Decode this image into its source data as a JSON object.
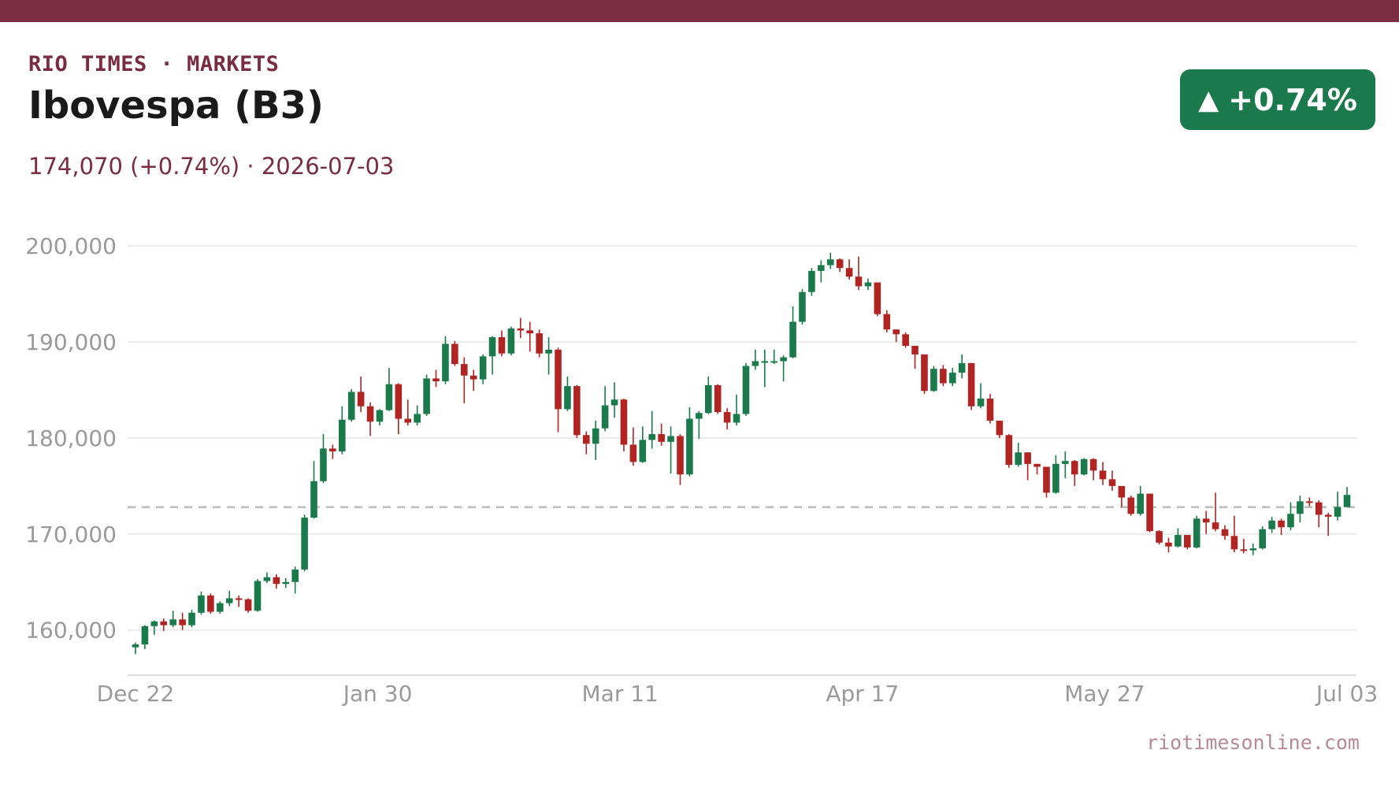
{
  "header": {
    "brand": "RIO TIMES · MARKETS",
    "title": "Ibovespa (B3)",
    "subline": "174,070 (+0.74%)  ·  2026-07-03",
    "badge_arrow": "▲",
    "badge_value": "+0.74%",
    "badge_color": "#1b7a4b",
    "accent_color": "#7a2c40"
  },
  "footer": {
    "source": "riotimesonline.com"
  },
  "chart_data": {
    "type": "candlestick",
    "up_color": "#1b7a4b",
    "down_color": "#b02422",
    "reference_line": {
      "value": 172800,
      "style": "dashed"
    },
    "ylim": [
      155300,
      201000
    ],
    "y_ticks": [
      160000,
      170000,
      180000,
      190000,
      200000
    ],
    "y_tick_labels": [
      "160,000",
      "170,000",
      "180,000",
      "190,000",
      "200,000"
    ],
    "x_tick_labels": [
      "Dec 22",
      "Jan 30",
      "Mar 11",
      "Apr 17",
      "May 27",
      "Jul 03"
    ],
    "grid": true,
    "candles": [
      [
        158200,
        158500,
        157500,
        158700
      ],
      [
        158500,
        160400,
        158000,
        160500
      ],
      [
        160400,
        160900,
        159500,
        161000
      ],
      [
        160900,
        160500,
        159900,
        161200
      ],
      [
        160500,
        161100,
        160300,
        162000
      ],
      [
        161100,
        160500,
        160000,
        161800
      ],
      [
        160500,
        161800,
        160300,
        162100
      ],
      [
        161800,
        163600,
        161600,
        164000
      ],
      [
        163600,
        161900,
        161700,
        163800
      ],
      [
        161900,
        162800,
        161700,
        163000
      ],
      [
        162800,
        163300,
        162500,
        164100
      ],
      [
        163300,
        163200,
        162400,
        163600
      ],
      [
        163200,
        162000,
        161800,
        163300
      ],
      [
        162000,
        165100,
        161900,
        165300
      ],
      [
        165100,
        165500,
        164900,
        166000
      ],
      [
        165500,
        164800,
        164300,
        165800
      ],
      [
        164800,
        165000,
        164400,
        165400
      ],
      [
        165000,
        166300,
        163800,
        166600
      ],
      [
        166300,
        171700,
        166100,
        172000
      ],
      [
        171700,
        175500,
        171600,
        177600
      ],
      [
        175500,
        178900,
        175300,
        180400
      ],
      [
        178900,
        178600,
        177800,
        179300
      ],
      [
        178600,
        181900,
        178300,
        183300
      ],
      [
        181900,
        184800,
        181700,
        185100
      ],
      [
        184800,
        183300,
        182700,
        186400
      ],
      [
        183300,
        181700,
        180200,
        183700
      ],
      [
        181700,
        182900,
        181300,
        183000
      ],
      [
        182900,
        185600,
        182800,
        187300
      ],
      [
        185600,
        182000,
        180400,
        185700
      ],
      [
        182000,
        181600,
        181300,
        184000
      ],
      [
        181600,
        182500,
        181300,
        183400
      ],
      [
        182500,
        186200,
        182300,
        186600
      ],
      [
        186200,
        185900,
        185300,
        187100
      ],
      [
        185900,
        189800,
        185600,
        190600
      ],
      [
        189800,
        187700,
        187500,
        190100
      ],
      [
        187700,
        186500,
        183600,
        188400
      ],
      [
        186500,
        186100,
        184900,
        187100
      ],
      [
        186100,
        188500,
        185600,
        188700
      ],
      [
        188500,
        190500,
        186600,
        190600
      ],
      [
        190500,
        188800,
        188500,
        191200
      ],
      [
        188800,
        191400,
        188600,
        191600
      ],
      [
        191400,
        191200,
        190400,
        192500
      ],
      [
        191200,
        190900,
        189000,
        192100
      ],
      [
        190900,
        188800,
        188400,
        191300
      ],
      [
        188800,
        189200,
        186600,
        190500
      ],
      [
        189200,
        183000,
        180600,
        189400
      ],
      [
        183000,
        185400,
        182800,
        186400
      ],
      [
        185400,
        180300,
        180000,
        185500
      ],
      [
        180300,
        179400,
        178300,
        180700
      ],
      [
        179400,
        181000,
        177700,
        181800
      ],
      [
        181000,
        183400,
        180700,
        185400
      ],
      [
        183400,
        184000,
        182100,
        185800
      ],
      [
        184000,
        179300,
        178600,
        184100
      ],
      [
        179300,
        177500,
        177100,
        181100
      ],
      [
        177500,
        179800,
        177400,
        181200
      ],
      [
        179800,
        180400,
        178900,
        182800
      ],
      [
        180400,
        179600,
        179200,
        181500
      ],
      [
        179600,
        180200,
        176300,
        181200
      ],
      [
        180200,
        176200,
        175100,
        180400
      ],
      [
        176200,
        182000,
        176000,
        183200
      ],
      [
        182000,
        182600,
        179900,
        182800
      ],
      [
        182600,
        185500,
        182500,
        186400
      ],
      [
        185500,
        182700,
        182500,
        185600
      ],
      [
        182700,
        181600,
        180900,
        183100
      ],
      [
        181600,
        182500,
        181300,
        184500
      ],
      [
        182500,
        187500,
        182300,
        187800
      ],
      [
        187500,
        188000,
        187100,
        189200
      ],
      [
        188000,
        188000,
        185300,
        189200
      ],
      [
        188000,
        188000,
        187700,
        189200
      ],
      [
        188000,
        188400,
        185900,
        188600
      ],
      [
        188400,
        192100,
        188300,
        193700
      ],
      [
        192100,
        195200,
        191800,
        195500
      ],
      [
        195200,
        197400,
        194800,
        197700
      ],
      [
        197400,
        198000,
        196200,
        198500
      ],
      [
        198000,
        198600,
        197600,
        199300
      ],
      [
        198600,
        197700,
        197300,
        198700
      ],
      [
        197700,
        196800,
        196500,
        198600
      ],
      [
        196800,
        195800,
        195400,
        198900
      ],
      [
        195800,
        196200,
        195400,
        196600
      ],
      [
        196200,
        192900,
        192700,
        196200
      ],
      [
        192900,
        191300,
        191000,
        193300
      ],
      [
        191300,
        190800,
        190000,
        191300
      ],
      [
        190800,
        189600,
        189400,
        191000
      ],
      [
        189600,
        188700,
        187200,
        189600
      ],
      [
        188700,
        184900,
        184600,
        188700
      ],
      [
        184900,
        187200,
        184800,
        187500
      ],
      [
        187200,
        185700,
        185400,
        187600
      ],
      [
        185700,
        186800,
        185400,
        187300
      ],
      [
        186800,
        187800,
        186200,
        188700
      ],
      [
        187800,
        183300,
        182900,
        187800
      ],
      [
        183300,
        184100,
        183100,
        185700
      ],
      [
        184100,
        181800,
        181500,
        184600
      ],
      [
        181800,
        180300,
        180000,
        181800
      ],
      [
        180300,
        177200,
        176900,
        180400
      ],
      [
        177200,
        178500,
        177000,
        179500
      ],
      [
        178500,
        177300,
        175600,
        178500
      ],
      [
        177300,
        177000,
        176200,
        177300
      ],
      [
        177000,
        174300,
        173800,
        177000
      ],
      [
        174300,
        177300,
        174200,
        178200
      ],
      [
        177300,
        177600,
        175800,
        178600
      ],
      [
        177600,
        176200,
        175000,
        177700
      ],
      [
        176200,
        177800,
        176100,
        177900
      ],
      [
        177800,
        176600,
        175600,
        177900
      ],
      [
        176600,
        175700,
        175100,
        177500
      ],
      [
        175700,
        175000,
        174500,
        176600
      ],
      [
        175000,
        173800,
        172800,
        175000
      ],
      [
        173800,
        172100,
        171900,
        174000
      ],
      [
        172100,
        174200,
        171900,
        175000
      ],
      [
        174200,
        170300,
        170200,
        174200
      ],
      [
        170300,
        169100,
        168900,
        170400
      ],
      [
        169100,
        168700,
        168100,
        169600
      ],
      [
        168700,
        169900,
        168600,
        170600
      ],
      [
        169900,
        168600,
        168400,
        169900
      ],
      [
        168600,
        171600,
        168500,
        171900
      ],
      [
        171600,
        171200,
        170000,
        172400
      ],
      [
        171200,
        170500,
        170300,
        174300
      ],
      [
        170500,
        169800,
        169400,
        170900
      ],
      [
        169800,
        168400,
        168100,
        171900
      ],
      [
        168400,
        168300,
        168000,
        169500
      ],
      [
        168300,
        168500,
        167800,
        169000
      ],
      [
        168500,
        170500,
        168400,
        170800
      ],
      [
        170500,
        171400,
        170100,
        171800
      ],
      [
        171400,
        170700,
        169900,
        171600
      ],
      [
        170700,
        172100,
        170400,
        173300
      ],
      [
        172100,
        173400,
        171200,
        174000
      ],
      [
        173400,
        173300,
        172900,
        173800
      ],
      [
        173300,
        172000,
        170700,
        173500
      ],
      [
        172000,
        171800,
        169800,
        172200
      ],
      [
        171800,
        172800,
        171400,
        174400
      ],
      [
        172800,
        174070,
        172800,
        174900
      ]
    ]
  }
}
